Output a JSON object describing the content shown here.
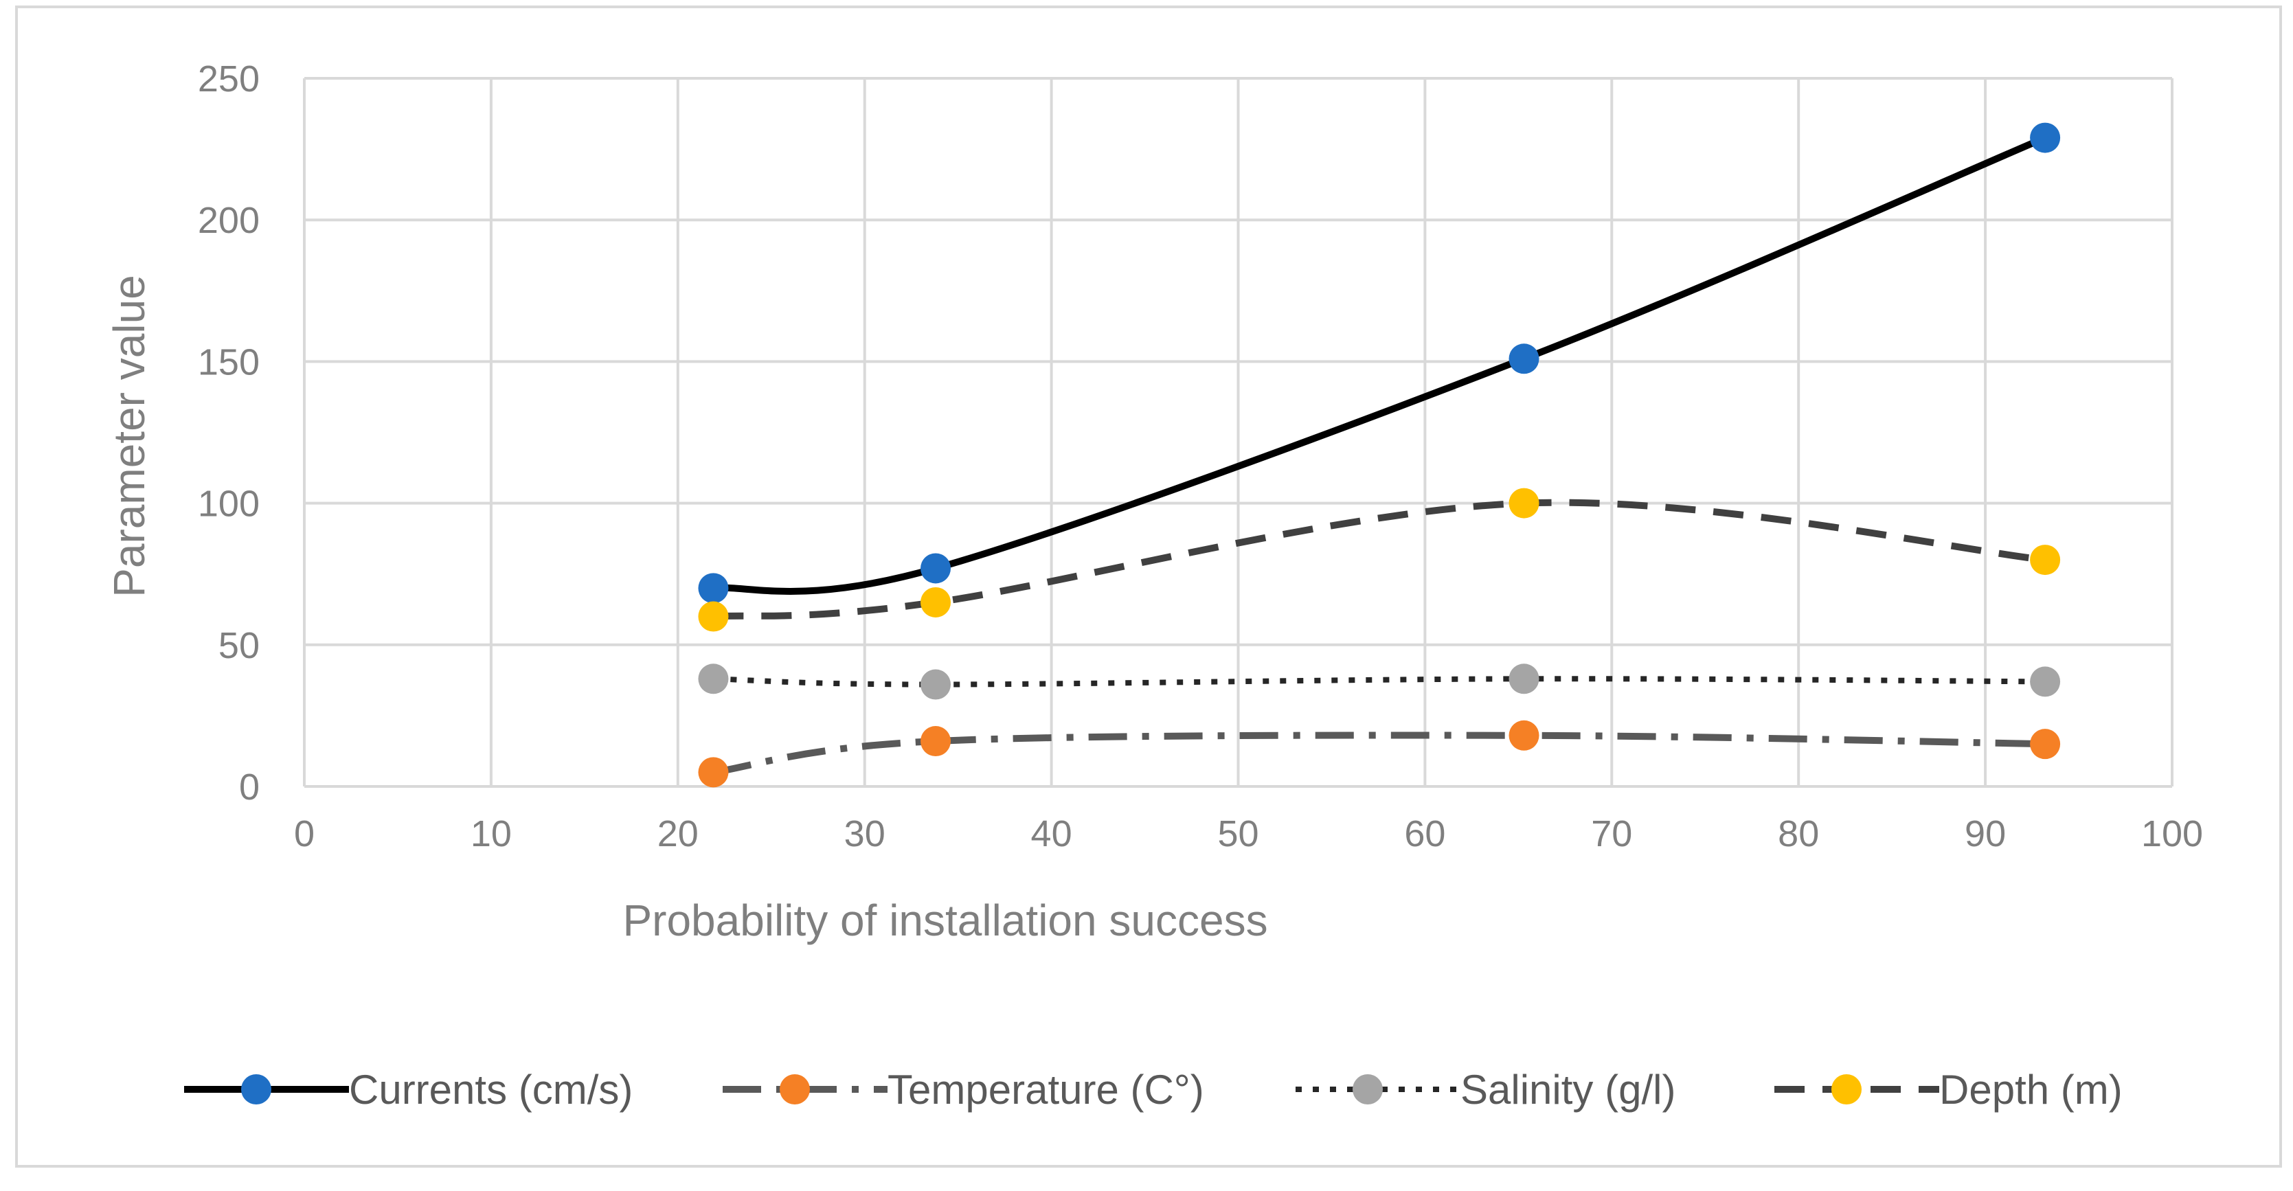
{
  "chart_data": {
    "type": "scatter",
    "title": "",
    "xlabel": "Probability of installation success",
    "ylabel": "Parameter value",
    "xlim": [
      0,
      100
    ],
    "ylim": [
      0,
      250
    ],
    "xticks": [
      0,
      10,
      20,
      30,
      40,
      50,
      60,
      70,
      80,
      90,
      100
    ],
    "yticks": [
      0,
      50,
      100,
      150,
      200,
      250
    ],
    "grid": true,
    "legend_position": "bottom",
    "x": [
      21.9,
      33.8,
      65.3,
      93.2
    ],
    "series": [
      {
        "name": "Currents (cm/s)",
        "values": [
          70,
          77,
          151,
          229
        ],
        "line_color": "#000000",
        "marker_color": "#1f6fc5",
        "dash": "solid"
      },
      {
        "name": "Temperature (C°)",
        "values": [
          5,
          16,
          18,
          15
        ],
        "line_color": "#595959",
        "marker_color": "#f58025",
        "dash": "dashdot"
      },
      {
        "name": "Salinity (g/l)",
        "values": [
          38,
          36,
          38,
          37
        ],
        "line_color": "#262626",
        "marker_color": "#a5a5a5",
        "dash": "dot"
      },
      {
        "name": "Depth (m)",
        "values": [
          60,
          65,
          100,
          80
        ],
        "line_color": "#404040",
        "marker_color": "#ffc000",
        "dash": "dash"
      }
    ]
  }
}
